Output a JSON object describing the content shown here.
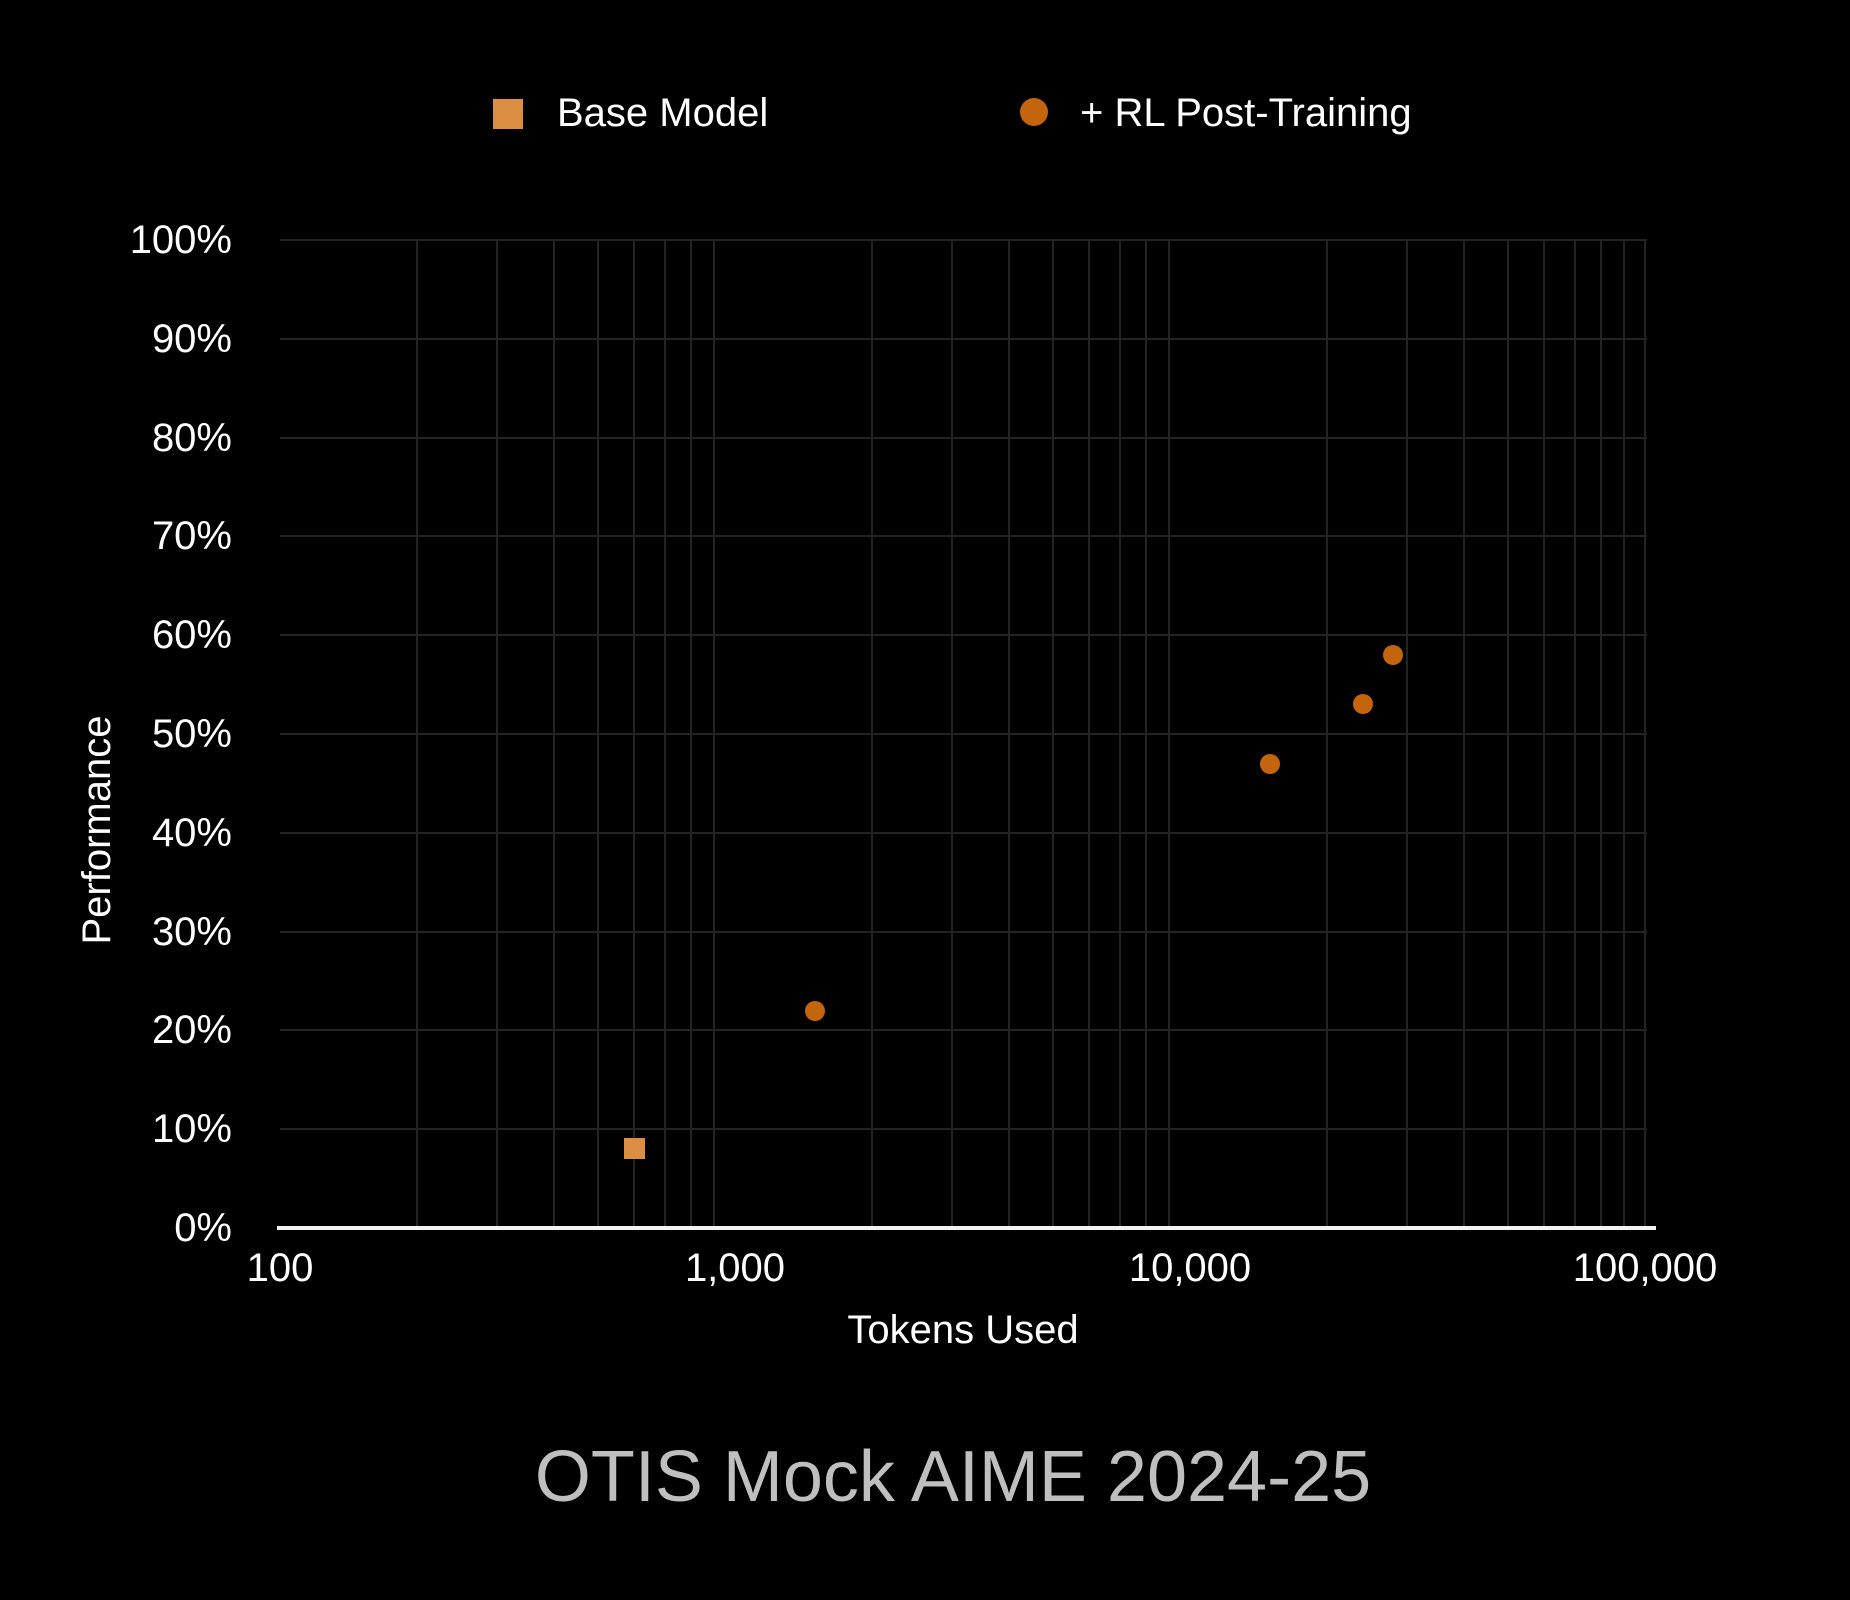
{
  "title": "OTIS Mock AIME 2024-25",
  "colors": {
    "background": "#000000",
    "gridline": "#232323",
    "axis_line": "#F2F2F2",
    "tick_text": "#FFFFFF",
    "title_text": "#BFBFBF",
    "base_model": "#DC8E42",
    "rl_post_training": "#C4640D"
  },
  "chart_data": {
    "type": "scatter",
    "title": "OTIS Mock AIME 2024-25",
    "xlabel": "Tokens Used",
    "ylabel": "Performance",
    "x_scale": "log",
    "x_range": [
      100,
      100000
    ],
    "x_tick_values": [
      100,
      1000,
      10000,
      100000
    ],
    "x_tick_labels": [
      "100",
      "1,000",
      "10,000",
      "100,000"
    ],
    "y_range": [
      0,
      100
    ],
    "y_tick_step": 10,
    "y_tick_labels": [
      "0%",
      "10%",
      "20%",
      "30%",
      "40%",
      "50%",
      "60%",
      "70%",
      "80%",
      "90%",
      "100%"
    ],
    "grid": true,
    "legend_position": "top",
    "series": [
      {
        "name": "Base Model",
        "marker": "square",
        "color": "#DC8E42",
        "points": [
          {
            "tokens": 600,
            "performance_pct": 8
          }
        ]
      },
      {
        "name": "+ RL Post-Training",
        "marker": "circle",
        "color": "#C4640D",
        "points": [
          {
            "tokens": 1500,
            "performance_pct": 22
          },
          {
            "tokens": 15000,
            "performance_pct": 47
          },
          {
            "tokens": 24000,
            "performance_pct": 53
          },
          {
            "tokens": 28000,
            "performance_pct": 58
          }
        ]
      }
    ]
  }
}
